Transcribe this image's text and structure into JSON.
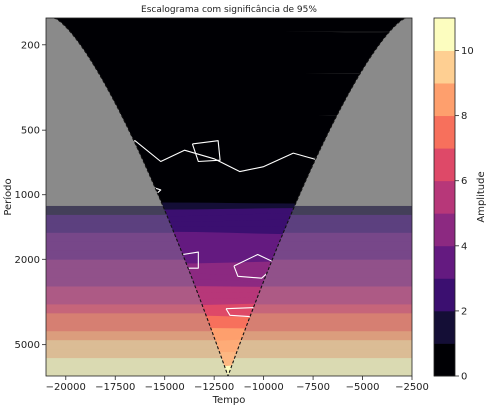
{
  "chart_data": {
    "type": "heatmap",
    "title": "Escalograma com significância de 95%",
    "xlabel": "Tempo",
    "ylabel": "Período",
    "colorbar_label": "Amplitude",
    "xlim": [
      -21000,
      -2500
    ],
    "ylim": [
      150,
      7000
    ],
    "y_scale": "log",
    "y_inverted": true,
    "xticks": [
      -20000,
      -17500,
      -15000,
      -12500,
      -10000,
      -7500,
      -5000,
      -2500
    ],
    "xtick_labels": [
      "−20000",
      "−17500",
      "−15000",
      "−12500",
      "−10000",
      "−7500",
      "−5000",
      "−2500"
    ],
    "yticks": [
      200,
      500,
      1000,
      2000,
      5000
    ],
    "ytick_labels": [
      "200",
      "500",
      "1000",
      "2000",
      "5000"
    ],
    "colorbar": {
      "range": [
        0,
        11
      ],
      "ticks": [
        0,
        2,
        4,
        6,
        8,
        10
      ],
      "tick_labels": [
        "0",
        "2",
        "4",
        "6",
        "8",
        "10"
      ],
      "colormap": "magma",
      "levels": 11
    },
    "cone_of_influence": {
      "center_x": -11800,
      "min_period_at_edges": 150,
      "max_period_at_center": 7000,
      "style": "dashed black"
    },
    "significance_contours": "white solid lines, 95% level",
    "outside_cone_shading": "gray"
  },
  "colors": {
    "cmap": [
      "#000004",
      "#140e36",
      "#3b0f70",
      "#641a80",
      "#8c2981",
      "#b73779",
      "#de4968",
      "#f7705c",
      "#fe9f6d",
      "#fecf92",
      "#fcfdbf"
    ],
    "outside_cone": "#8a8a8a"
  }
}
